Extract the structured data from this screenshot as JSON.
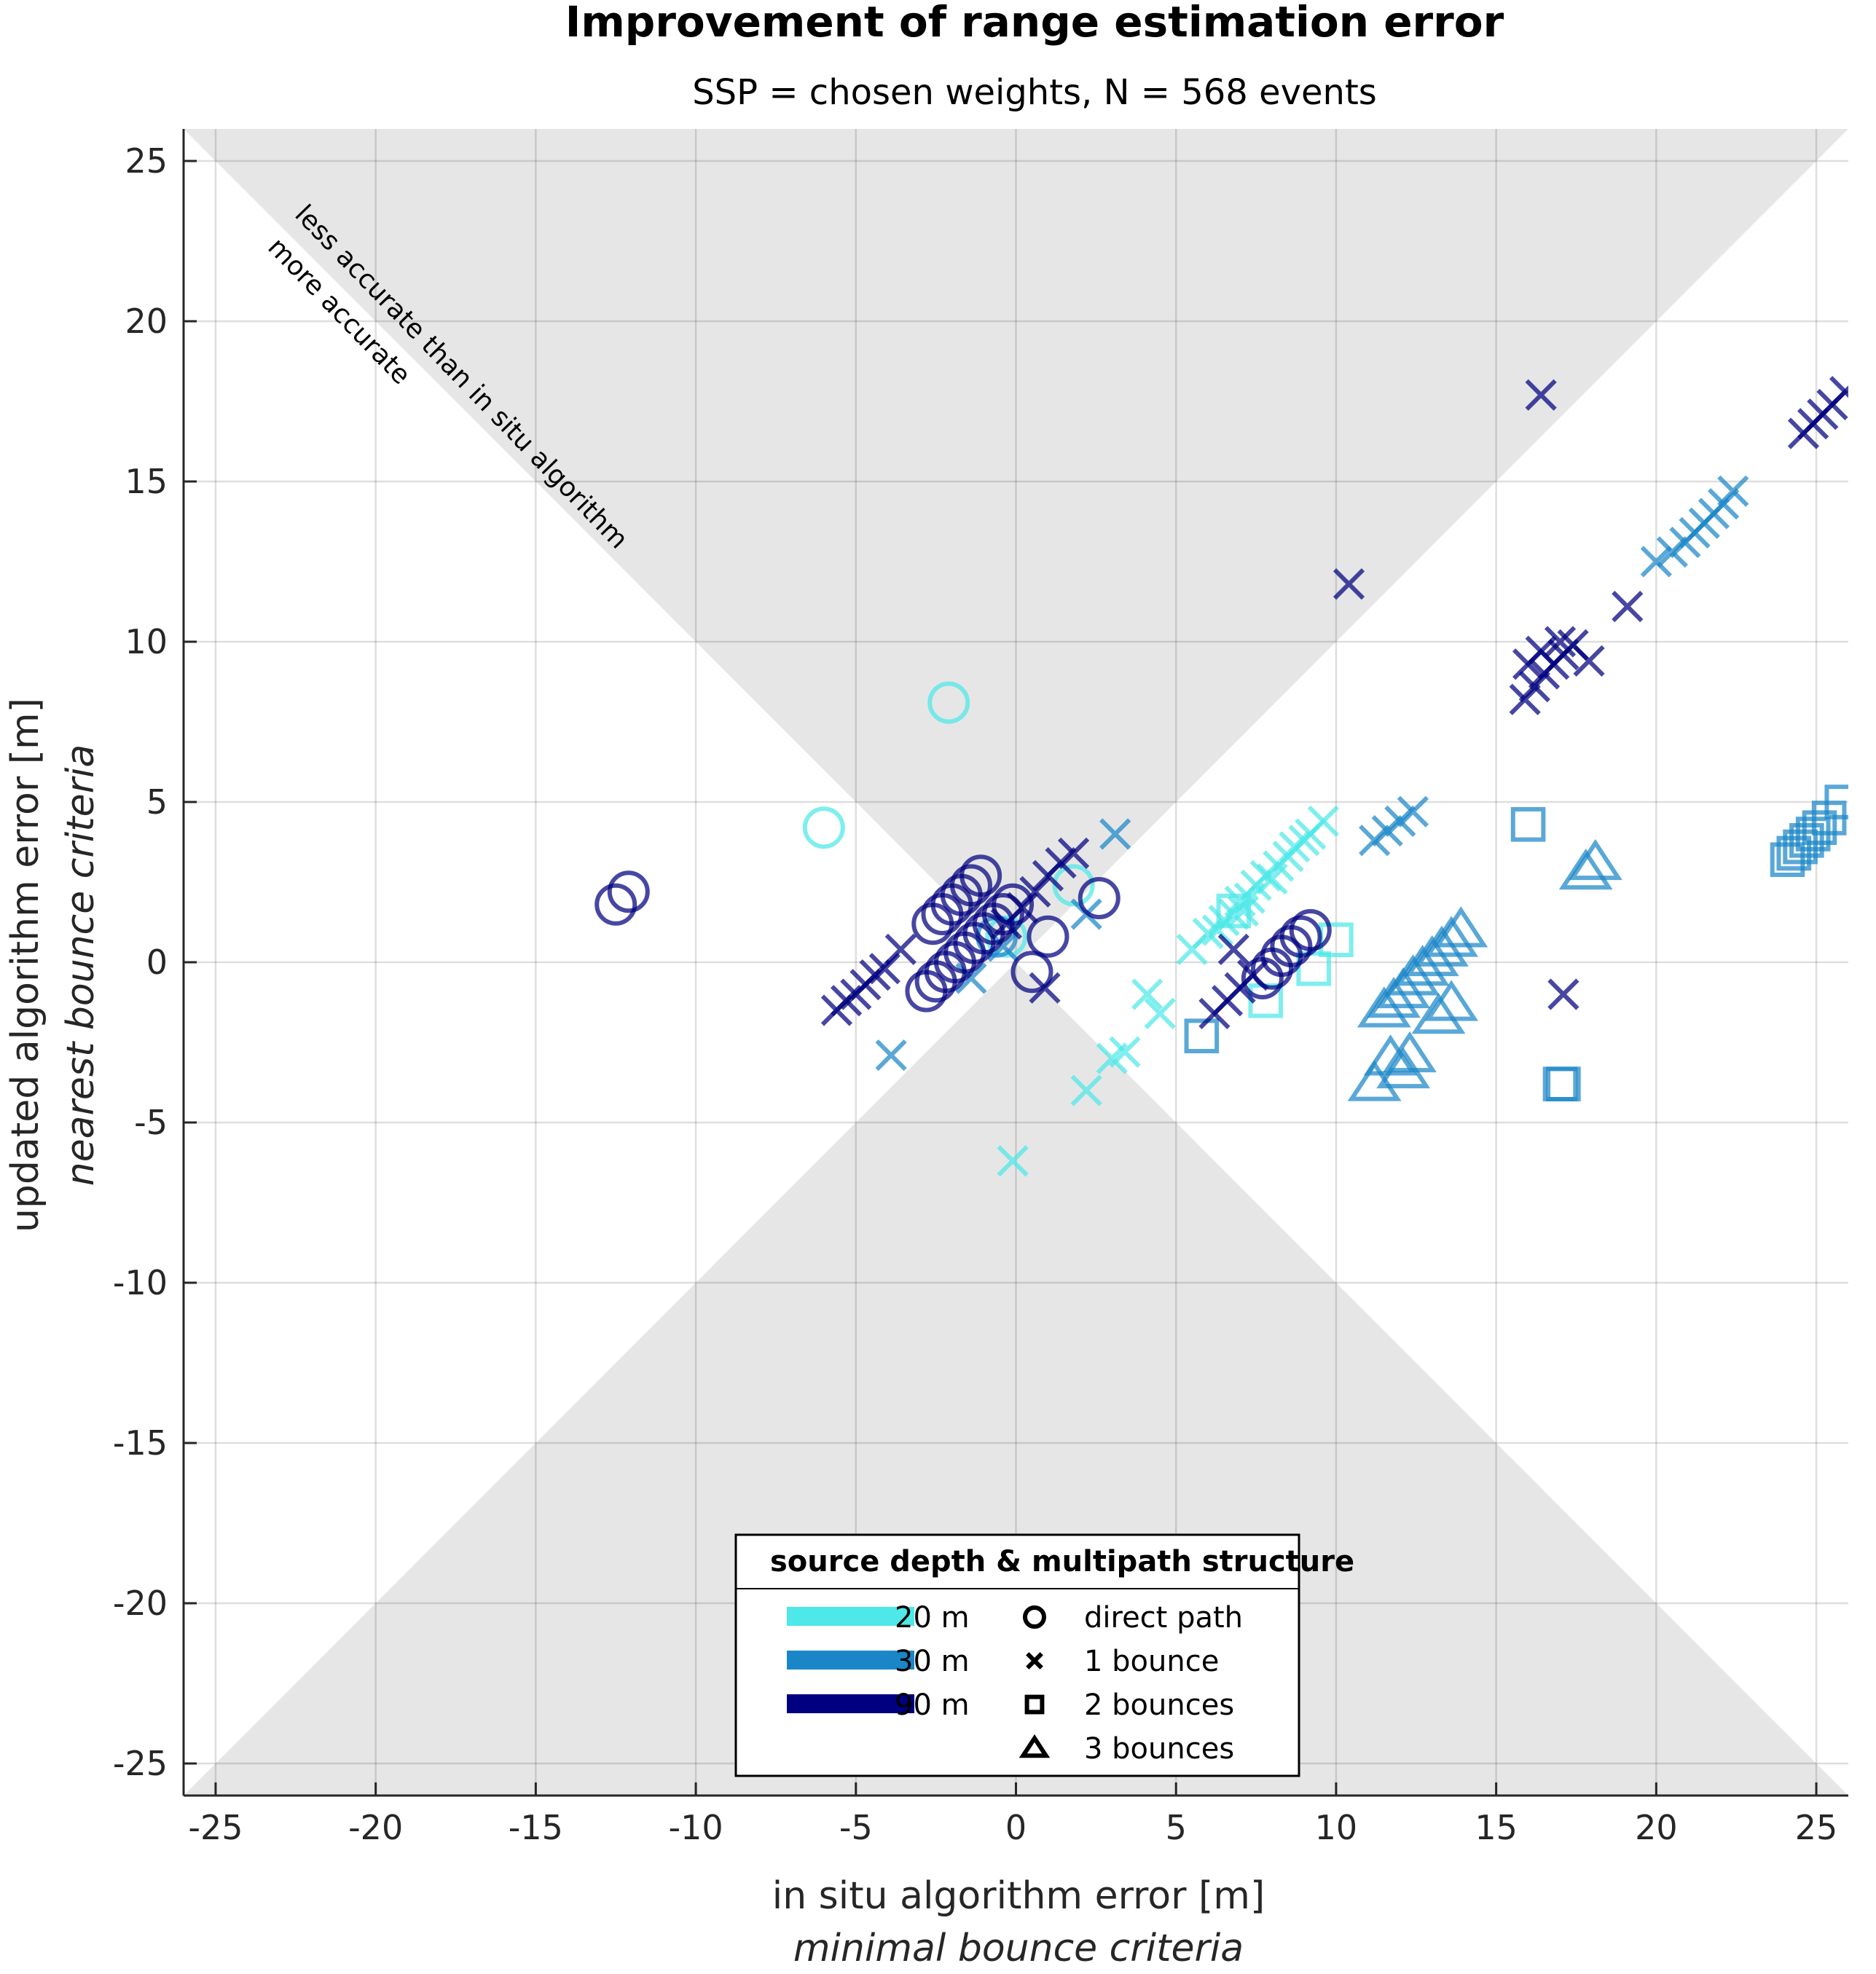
{
  "chart_data": {
    "type": "scatter",
    "title": "Improvement of range estimation error",
    "subtitle": "SSP = chosen weights, N = 568 events",
    "xlabel": "in situ algorithm error [m]",
    "xlabel_sub": "minimal bounce criteria",
    "ylabel": "updated algorithm error [m]",
    "ylabel_sub": "nearest bounce criteria",
    "xlim": [
      -26,
      26
    ],
    "ylim": [
      -26,
      26
    ],
    "xticks": [
      -25,
      -20,
      -15,
      -10,
      -5,
      0,
      5,
      10,
      15,
      20,
      25
    ],
    "yticks": [
      -25,
      -20,
      -15,
      -10,
      -5,
      0,
      5,
      10,
      15,
      20,
      25
    ],
    "grid": true,
    "shaded_region": "|y| > |x| (less accurate than in situ algorithm)",
    "annotations": [
      "less accurate than in situ algorithm",
      "more accurate"
    ],
    "legend": {
      "title": "source depth & multipath structure",
      "placement": "bottom-center",
      "depths": [
        {
          "label": "20 m",
          "color": "#4ee8e8"
        },
        {
          "label": "30 m",
          "color": "#1a86c8"
        },
        {
          "label": "90 m",
          "color": "#000080"
        }
      ],
      "markers": [
        {
          "label": "direct path",
          "symbol": "circle"
        },
        {
          "label": "1 bounce",
          "symbol": "x"
        },
        {
          "label": "2 bounces",
          "symbol": "square"
        },
        {
          "label": "3 bounces",
          "symbol": "triangle"
        }
      ]
    },
    "series": [
      {
        "depth": "20 m",
        "marker": "circle",
        "points": [
          [
            -2.1,
            8.1
          ],
          [
            -6.0,
            4.2
          ],
          [
            1.8,
            2.4
          ],
          [
            -0.3,
            0.8
          ]
        ]
      },
      {
        "depth": "20 m",
        "marker": "x",
        "points": [
          [
            -0.1,
            -6.2
          ],
          [
            2.2,
            -4.0
          ],
          [
            3.0,
            -3.0
          ],
          [
            3.4,
            -2.8
          ],
          [
            4.5,
            -1.6
          ],
          [
            4.1,
            -1.0
          ],
          [
            5.5,
            0.4
          ],
          [
            6.0,
            0.9
          ],
          [
            6.5,
            1.3
          ],
          [
            6.8,
            1.5
          ],
          [
            7.0,
            1.9
          ],
          [
            7.3,
            2.0
          ],
          [
            7.5,
            2.4
          ],
          [
            7.8,
            2.7
          ],
          [
            8.0,
            2.6
          ],
          [
            8.2,
            3.0
          ],
          [
            8.5,
            3.3
          ],
          [
            8.7,
            3.6
          ],
          [
            9.0,
            3.8
          ],
          [
            9.2,
            4.0
          ],
          [
            9.6,
            4.4
          ],
          [
            6.3,
            1.0
          ],
          [
            7.1,
            1.6
          ]
        ]
      },
      {
        "depth": "20 m",
        "marker": "square",
        "points": [
          [
            7.8,
            -1.2
          ],
          [
            9.3,
            -0.2
          ],
          [
            10.0,
            0.7
          ],
          [
            6.8,
            1.6
          ]
        ]
      },
      {
        "depth": "30 m",
        "marker": "circle",
        "points": [
          [
            -0.6,
            0.8
          ]
        ]
      },
      {
        "depth": "30 m",
        "marker": "x",
        "points": [
          [
            -3.9,
            -2.9
          ],
          [
            -1.4,
            -0.5
          ],
          [
            -0.4,
            0.5
          ],
          [
            2.2,
            1.5
          ],
          [
            3.1,
            4.0
          ],
          [
            11.2,
            3.8
          ],
          [
            11.6,
            4.1
          ],
          [
            12.0,
            4.4
          ],
          [
            12.4,
            4.7
          ],
          [
            20.0,
            12.5
          ],
          [
            20.5,
            12.8
          ],
          [
            20.9,
            13.1
          ],
          [
            21.2,
            13.4
          ],
          [
            21.5,
            13.7
          ],
          [
            21.8,
            14.0
          ],
          [
            22.1,
            14.3
          ],
          [
            22.4,
            14.7
          ]
        ]
      },
      {
        "depth": "30 m",
        "marker": "square",
        "points": [
          [
            5.8,
            -2.3
          ],
          [
            16.0,
            4.3
          ],
          [
            17.1,
            -3.8
          ],
          [
            17.0,
            -3.8
          ],
          [
            24.1,
            3.2
          ],
          [
            24.3,
            3.4
          ],
          [
            24.5,
            3.6
          ],
          [
            24.7,
            3.8
          ],
          [
            24.9,
            4.0
          ],
          [
            25.1,
            4.2
          ],
          [
            25.4,
            4.5
          ],
          [
            25.8,
            5.0
          ]
        ]
      },
      {
        "depth": "30 m",
        "marker": "triangle",
        "points": [
          [
            11.2,
            -3.8
          ],
          [
            11.7,
            -3.0
          ],
          [
            12.1,
            -3.4
          ],
          [
            12.3,
            -2.9
          ],
          [
            11.5,
            -1.5
          ],
          [
            11.8,
            -1.2
          ],
          [
            12.1,
            -0.9
          ],
          [
            12.4,
            -0.5
          ],
          [
            12.7,
            -0.2
          ],
          [
            13.0,
            0.1
          ],
          [
            13.3,
            0.4
          ],
          [
            13.6,
            0.7
          ],
          [
            13.9,
            1.0
          ],
          [
            13.2,
            -1.7
          ],
          [
            13.6,
            -1.3
          ],
          [
            17.8,
            2.8
          ],
          [
            18.1,
            3.1
          ]
        ]
      },
      {
        "depth": "90 m",
        "marker": "circle",
        "points": [
          [
            -12.5,
            1.8
          ],
          [
            -12.1,
            2.2
          ],
          [
            -2.8,
            -0.9
          ],
          [
            -2.5,
            -0.6
          ],
          [
            -2.2,
            -0.3
          ],
          [
            -1.9,
            0.0
          ],
          [
            -1.6,
            0.3
          ],
          [
            -1.3,
            0.6
          ],
          [
            -1.0,
            0.9
          ],
          [
            -0.7,
            1.2
          ],
          [
            -0.4,
            1.5
          ],
          [
            -0.1,
            1.8
          ],
          [
            -2.6,
            1.2
          ],
          [
            -2.3,
            1.5
          ],
          [
            -2.0,
            1.8
          ],
          [
            -1.7,
            2.1
          ],
          [
            -1.4,
            2.4
          ],
          [
            -1.1,
            2.7
          ],
          [
            0.5,
            -0.3
          ],
          [
            1.0,
            0.8
          ],
          [
            2.6,
            2.0
          ],
          [
            7.7,
            -0.5
          ],
          [
            8.0,
            -0.2
          ],
          [
            8.3,
            0.2
          ],
          [
            8.6,
            0.5
          ],
          [
            8.9,
            0.8
          ],
          [
            9.2,
            1.0
          ]
        ]
      },
      {
        "depth": "90 m",
        "marker": "x",
        "points": [
          [
            -5.6,
            -1.5
          ],
          [
            -5.3,
            -1.2
          ],
          [
            -5.0,
            -1.0
          ],
          [
            -4.7,
            -0.7
          ],
          [
            -4.4,
            -0.4
          ],
          [
            -4.1,
            -0.2
          ],
          [
            -3.6,
            0.4
          ],
          [
            -0.3,
            1.2
          ],
          [
            0.2,
            1.7
          ],
          [
            0.6,
            2.2
          ],
          [
            1.0,
            2.7
          ],
          [
            1.4,
            3.1
          ],
          [
            1.8,
            3.4
          ],
          [
            0.9,
            -0.8
          ],
          [
            6.2,
            -1.6
          ],
          [
            6.6,
            -1.2
          ],
          [
            7.0,
            -0.8
          ],
          [
            7.4,
            -0.4
          ],
          [
            6.8,
            0.4
          ],
          [
            10.4,
            11.8
          ],
          [
            16.4,
            17.7
          ],
          [
            17.1,
            -1.0
          ],
          [
            15.9,
            8.2
          ],
          [
            16.2,
            8.6
          ],
          [
            16.5,
            9.0
          ],
          [
            16.8,
            9.3
          ],
          [
            17.1,
            9.6
          ],
          [
            17.4,
            9.9
          ],
          [
            16.0,
            9.3
          ],
          [
            16.4,
            9.7
          ],
          [
            17.0,
            10.0
          ],
          [
            17.9,
            9.4
          ],
          [
            19.1,
            11.1
          ],
          [
            24.6,
            16.5
          ],
          [
            24.9,
            16.8
          ],
          [
            25.2,
            17.1
          ],
          [
            25.5,
            17.4
          ],
          [
            25.9,
            17.8
          ]
        ]
      }
    ]
  }
}
